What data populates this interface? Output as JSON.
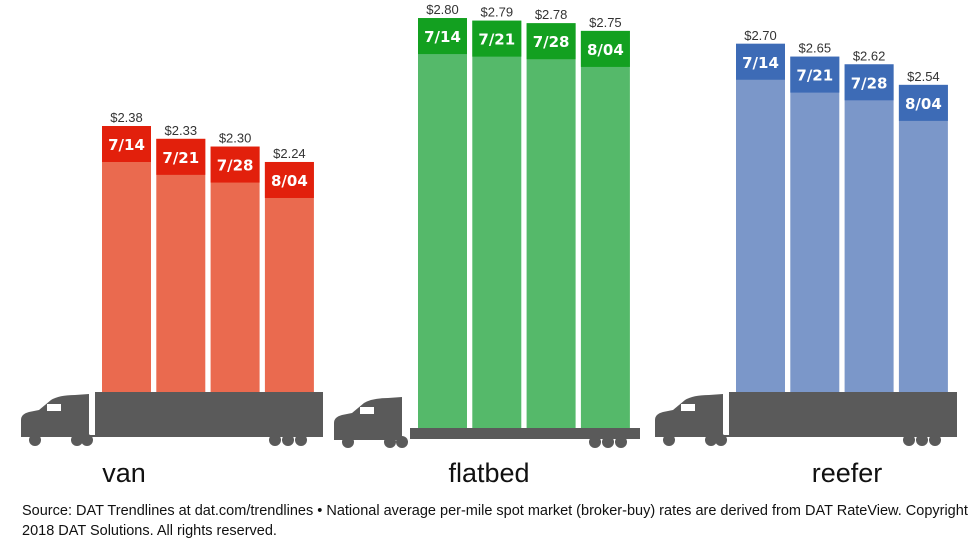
{
  "chart_data": {
    "type": "bar",
    "categories": [
      "7/14",
      "7/21",
      "7/28",
      "8/04"
    ],
    "series": [
      {
        "name": "van",
        "values": [
          2.38,
          2.33,
          2.3,
          2.24
        ],
        "labels": [
          "$2.38",
          "$2.33",
          "$2.30",
          "$2.24"
        ],
        "color": "#ea6a4f",
        "header_color": "#e2200c"
      },
      {
        "name": "flatbed",
        "values": [
          2.8,
          2.79,
          2.78,
          2.75
        ],
        "labels": [
          "$2.80",
          "$2.79",
          "$2.78",
          "$2.75"
        ],
        "color": "#55b96a",
        "header_color": "#13a020"
      },
      {
        "name": "reefer",
        "values": [
          2.7,
          2.65,
          2.62,
          2.54
        ],
        "labels": [
          "$2.70",
          "$2.65",
          "$2.62",
          "$2.54"
        ],
        "color": "#7b97c9",
        "header_color": "#3d6bb6"
      }
    ],
    "truck_color": "#5a5a5a",
    "source": "Source: DAT Trendlines at dat.com/trendlines • National average per-mile spot market (broker-buy) rates are derived from DAT RateView. Copyright 2018 DAT Solutions. All rights reserved."
  }
}
